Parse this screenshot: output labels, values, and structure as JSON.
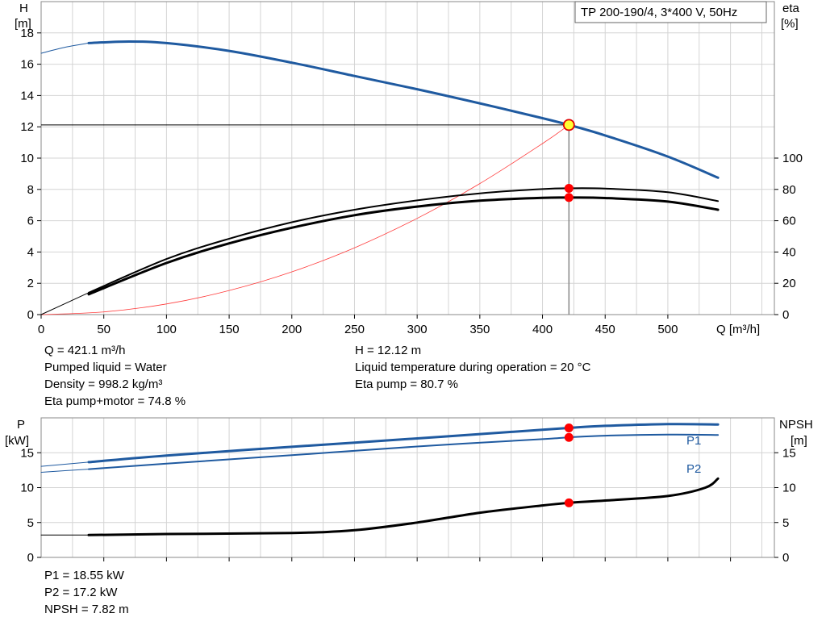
{
  "chart_data": [
    {
      "type": "line",
      "name": "head-eta-chart",
      "title": "TP 200-190/4, 3*400 V, 50Hz",
      "xlabel": "Q [m³/h]",
      "ylabel": "H",
      "ylabel_unit": "[m]",
      "y2label": "eta",
      "y2label_unit": "[%]",
      "xlim": [
        0,
        585
      ],
      "ylim": [
        0,
        20
      ],
      "y2lim": [
        0,
        200
      ],
      "xticks": [
        0,
        50,
        100,
        150,
        200,
        250,
        300,
        350,
        400,
        450,
        500
      ],
      "yticks": [
        0,
        2,
        4,
        6,
        8,
        10,
        12,
        14,
        16,
        18
      ],
      "y2ticks": [
        0,
        20,
        40,
        60,
        80,
        100
      ],
      "grid": true,
      "series": [
        {
          "key": "head_ext",
          "axis": "left",
          "color": "#1f5aa0",
          "width": 1,
          "x": [
            0,
            20,
            38
          ],
          "y": [
            16.7,
            17.1,
            17.35
          ]
        },
        {
          "key": "head",
          "axis": "left",
          "color": "#1f5aa0",
          "width": 3,
          "x": [
            38,
            70,
            100,
            150,
            200,
            250,
            300,
            350,
            400,
            421.1,
            450,
            500,
            540
          ],
          "y": [
            17.35,
            17.45,
            17.35,
            16.85,
            16.1,
            15.25,
            14.4,
            13.5,
            12.55,
            12.12,
            11.45,
            10.1,
            8.75
          ]
        },
        {
          "key": "system",
          "axis": "left",
          "color": "#ff3b3b",
          "width": 0.8,
          "x": [
            0,
            50,
            100,
            150,
            200,
            250,
            300,
            350,
            400,
            421.1
          ],
          "y": [
            0,
            0.17,
            0.68,
            1.54,
            2.73,
            4.27,
            6.15,
            8.37,
            10.93,
            12.12
          ]
        },
        {
          "key": "eta_pump_ext",
          "axis": "right",
          "color": "#000000",
          "width": 1,
          "x": [
            0,
            38
          ],
          "y": [
            0,
            14
          ]
        },
        {
          "key": "eta_pump",
          "axis": "right",
          "color": "#000000",
          "width": 2,
          "x": [
            38,
            100,
            150,
            200,
            250,
            300,
            350,
            400,
            421.1,
            450,
            500,
            540
          ],
          "y": [
            14,
            35.5,
            48.5,
            59,
            67,
            73,
            77.5,
            80.2,
            80.7,
            80.5,
            78.2,
            72.5
          ]
        },
        {
          "key": "eta_total",
          "axis": "right",
          "color": "#000000",
          "width": 3,
          "x": [
            38,
            100,
            150,
            200,
            250,
            300,
            350,
            400,
            421.1,
            450,
            500,
            540
          ],
          "y": [
            13,
            33,
            45.5,
            55.5,
            63.5,
            69,
            72.8,
            74.6,
            74.8,
            74.5,
            72.2,
            67
          ]
        }
      ],
      "operating_point": {
        "x": 421.1,
        "y": 12.12
      },
      "markers": [
        {
          "axis": "right",
          "x": 421.1,
          "y": 80.7
        },
        {
          "axis": "right",
          "x": 421.1,
          "y": 74.8
        }
      ]
    },
    {
      "type": "line",
      "name": "power-npsh-chart",
      "xlabel": "",
      "ylabel": "P",
      "ylabel_unit": "[kW]",
      "y2label": "NPSH",
      "y2label_unit": "[m]",
      "xlim": [
        0,
        585
      ],
      "ylim": [
        0,
        20
      ],
      "y2lim": [
        0,
        20
      ],
      "yticks": [
        0,
        5,
        10,
        15
      ],
      "y2ticks": [
        0,
        5,
        10,
        15
      ],
      "grid": true,
      "series": [
        {
          "key": "p1_ext",
          "axis": "left",
          "color": "#1f5aa0",
          "width": 1,
          "x": [
            0,
            38
          ],
          "y": [
            13.05,
            13.65
          ]
        },
        {
          "key": "p1",
          "name": "P1",
          "axis": "left",
          "color": "#1f5aa0",
          "width": 3,
          "x": [
            38,
            100,
            200,
            300,
            400,
            421.1,
            450,
            500,
            540
          ],
          "y": [
            13.65,
            14.6,
            15.85,
            17.05,
            18.3,
            18.55,
            18.85,
            19.1,
            19.05
          ]
        },
        {
          "key": "p2_ext",
          "axis": "left",
          "color": "#1f5aa0",
          "width": 1,
          "x": [
            0,
            38
          ],
          "y": [
            12.2,
            12.65
          ]
        },
        {
          "key": "p2",
          "name": "P2",
          "axis": "left",
          "color": "#1f5aa0",
          "width": 2,
          "x": [
            38,
            100,
            200,
            300,
            400,
            421.1,
            450,
            500,
            540
          ],
          "y": [
            12.65,
            13.45,
            14.65,
            15.9,
            16.95,
            17.2,
            17.45,
            17.6,
            17.55
          ]
        },
        {
          "key": "npsh_ext",
          "axis": "right",
          "color": "#000000",
          "width": 1,
          "x": [
            0,
            38
          ],
          "y": [
            3.2,
            3.2
          ]
        },
        {
          "key": "npsh",
          "axis": "right",
          "color": "#000000",
          "width": 3,
          "x": [
            38,
            100,
            200,
            250,
            300,
            350,
            400,
            421.1,
            450,
            500,
            530,
            540
          ],
          "y": [
            3.2,
            3.35,
            3.5,
            3.9,
            5.0,
            6.4,
            7.45,
            7.82,
            8.15,
            8.8,
            10.0,
            11.3
          ]
        }
      ],
      "markers": [
        {
          "axis": "left",
          "x": 421.1,
          "y": 18.55
        },
        {
          "axis": "left",
          "x": 421.1,
          "y": 17.2
        },
        {
          "axis": "right",
          "x": 421.1,
          "y": 7.82
        }
      ]
    }
  ],
  "results": {
    "q": "Q = 421.1 m³/h",
    "liquid": "Pumped liquid = Water",
    "density": "Density = 998.2 kg/m³",
    "eta_total": "Eta pump+motor = 74.8 %",
    "h": "H = 12.12 m",
    "temperature": "Liquid temperature during operation = 20 °C",
    "eta_pump": "Eta pump = 80.7 %",
    "p1": "P1 = 18.55 kW",
    "p2": "P2 = 17.2 kW",
    "npsh": "NPSH = 7.82 m"
  }
}
